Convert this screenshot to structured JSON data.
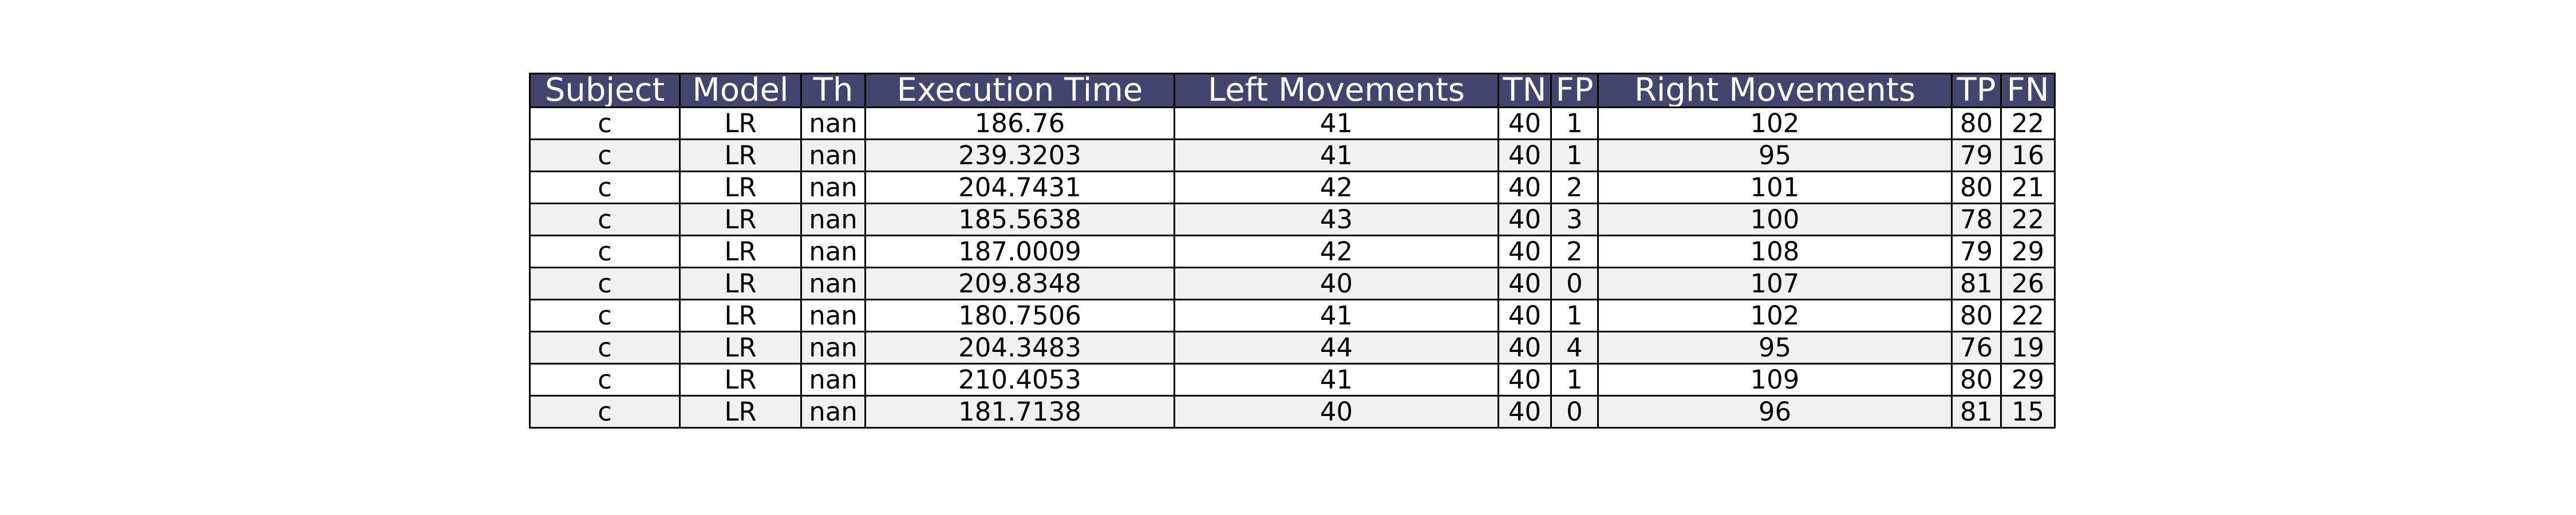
{
  "chart_data": {
    "type": "table",
    "columns": [
      "Subject",
      "Model",
      "Th",
      "Execution Time",
      "Left Movements",
      "TN",
      "FP",
      "Right Movements",
      "TP",
      "FN"
    ],
    "rows": [
      [
        "c",
        "LR",
        "nan",
        "186.76",
        "41",
        "40",
        "1",
        "102",
        "80",
        "22"
      ],
      [
        "c",
        "LR",
        "nan",
        "239.3203",
        "41",
        "40",
        "1",
        "95",
        "79",
        "16"
      ],
      [
        "c",
        "LR",
        "nan",
        "204.7431",
        "42",
        "40",
        "2",
        "101",
        "80",
        "21"
      ],
      [
        "c",
        "LR",
        "nan",
        "185.5638",
        "43",
        "40",
        "3",
        "100",
        "78",
        "22"
      ],
      [
        "c",
        "LR",
        "nan",
        "187.0009",
        "42",
        "40",
        "2",
        "108",
        "79",
        "29"
      ],
      [
        "c",
        "LR",
        "nan",
        "209.8348",
        "40",
        "40",
        "0",
        "107",
        "81",
        "26"
      ],
      [
        "c",
        "LR",
        "nan",
        "180.7506",
        "41",
        "40",
        "1",
        "102",
        "80",
        "22"
      ],
      [
        "c",
        "LR",
        "nan",
        "204.3483",
        "44",
        "40",
        "4",
        "95",
        "76",
        "19"
      ],
      [
        "c",
        "LR",
        "nan",
        "210.4053",
        "41",
        "40",
        "1",
        "109",
        "80",
        "29"
      ],
      [
        "c",
        "LR",
        "nan",
        "181.7138",
        "40",
        "40",
        "0",
        "96",
        "81",
        "15"
      ]
    ],
    "header_color": "#40466e",
    "header_text_color": "#ffffff",
    "row_colors": [
      "#ffffff",
      "#f1f1f2"
    ],
    "border_color": "#000000"
  }
}
